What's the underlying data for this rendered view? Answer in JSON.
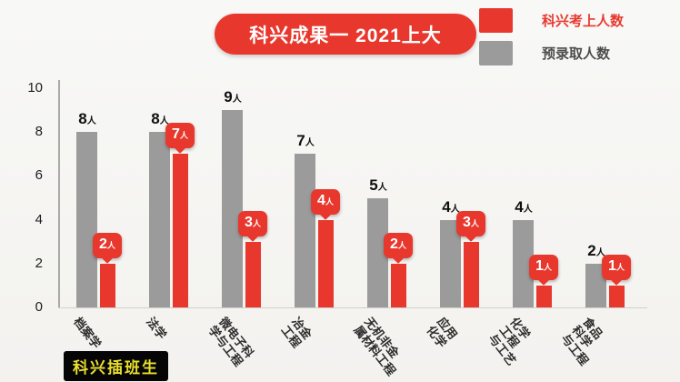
{
  "title": "科兴成果一 2021上大",
  "watermark": "科兴插班生",
  "legend": {
    "items": [
      {
        "label": "科兴考上人数",
        "color": "#e8382e",
        "label_color": "#e8382e"
      },
      {
        "label": "预录取人数",
        "color": "#9b9b9b",
        "label_color": "#4d4d4d"
      }
    ]
  },
  "chart_data": {
    "type": "bar",
    "title": "科兴成果一 2021上大",
    "categories": [
      "档案学",
      "法学",
      "微电子科学与工程",
      "冶金工程",
      "无机非金属材料工程",
      "应用化学",
      "化学工程与工艺",
      "食品科学与工程"
    ],
    "category_label_lines": [
      [
        "档案学"
      ],
      [
        "法学"
      ],
      [
        "微电子科",
        "学与工程"
      ],
      [
        "冶金",
        "工程"
      ],
      [
        "无机非金",
        "属材料工程"
      ],
      [
        "应用",
        "化学"
      ],
      [
        "化学",
        "工程",
        "与工艺"
      ],
      [
        "食品",
        "科学",
        "与工程"
      ]
    ],
    "series": [
      {
        "name": "预录取人数",
        "color": "#9b9b9b",
        "values": [
          8,
          8,
          9,
          7,
          5,
          4,
          4,
          2
        ]
      },
      {
        "name": "科兴考上人数",
        "color": "#e8382e",
        "values": [
          2,
          7,
          3,
          4,
          2,
          3,
          1,
          1
        ]
      }
    ],
    "value_suffix": "人",
    "xlabel": "",
    "ylabel": "",
    "ylim": [
      0,
      10
    ],
    "yticks": [
      10,
      8,
      6,
      4,
      2,
      0
    ],
    "grid": false,
    "legend_position": "top-right"
  }
}
